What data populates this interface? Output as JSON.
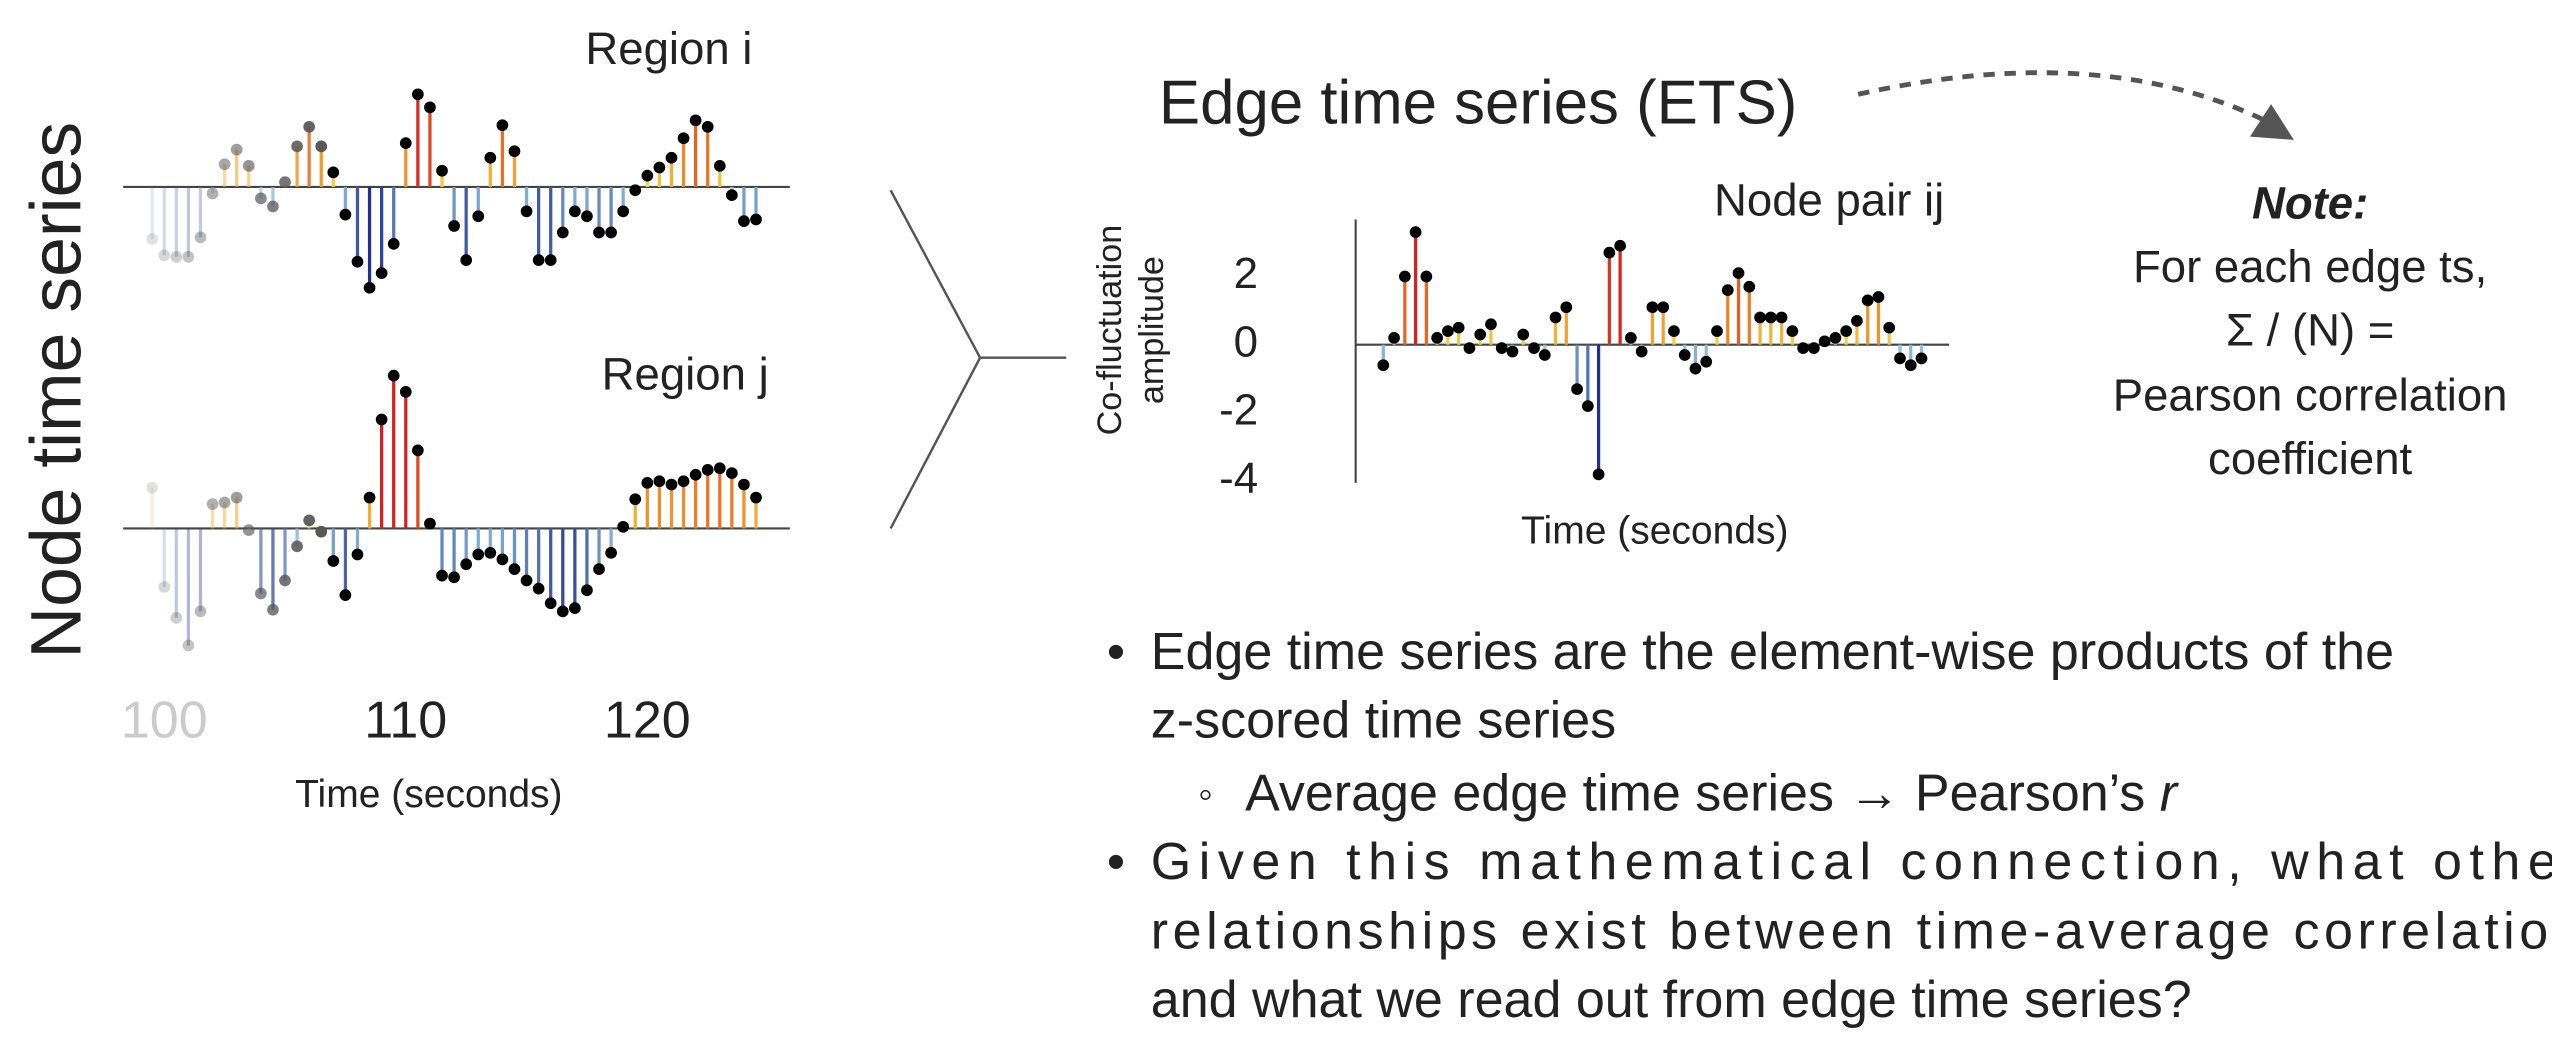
{
  "node_panel": {
    "ylabel": "Node time series"
  },
  "chart_data": [
    {
      "type": "stem",
      "title": "Region i",
      "fade": true,
      "x": [
        99.5,
        100,
        100.5,
        101,
        101.5,
        102,
        102.5,
        103,
        103.5,
        104,
        104.5,
        105,
        105.5,
        106,
        106.5,
        107,
        107.5,
        108,
        108.5,
        109,
        109.5,
        110,
        110.5,
        111,
        111.5,
        112,
        112.5,
        113,
        113.5,
        114,
        114.5,
        115,
        115.5,
        116,
        116.5,
        117,
        117.5,
        118,
        118.5,
        119,
        119.5,
        120,
        120.5,
        121,
        121.5,
        122,
        122.5,
        123,
        123.5,
        124,
        124.5
      ],
      "values": [
        -1.6,
        -2.1,
        -2.15,
        -2.15,
        -1.55,
        -0.2,
        0.7,
        1.15,
        0.65,
        -0.35,
        -0.6,
        0.15,
        1.25,
        1.85,
        1.25,
        0.45,
        -0.85,
        -2.3,
        -3.1,
        -2.65,
        -1.75,
        1.35,
        2.85,
        2.45,
        0.5,
        -1.2,
        -2.25,
        -0.9,
        0.9,
        1.9,
        1.1,
        -0.75,
        -2.25,
        -2.25,
        -1.4,
        -0.75,
        -0.9,
        -1.4,
        -1.4,
        -0.75,
        -0.1,
        0.35,
        0.6,
        0.9,
        1.5,
        2.05,
        1.85,
        0.65,
        -0.25,
        -1.05,
        -1.0
      ],
      "xlim": [
        98.3,
        125.9
      ],
      "ylim": [
        -3.5,
        3.5
      ]
    },
    {
      "type": "stem",
      "title": "Region j",
      "fade": true,
      "xlabel": "Time (seconds)",
      "x": [
        99.5,
        100,
        100.5,
        101,
        101.5,
        102,
        102.5,
        103,
        103.5,
        104,
        104.5,
        105,
        105.5,
        106,
        106.5,
        107,
        107.5,
        108,
        108.5,
        109,
        109.5,
        110,
        110.5,
        111,
        111.5,
        112,
        112.5,
        113,
        113.5,
        114,
        114.5,
        115,
        115.5,
        116,
        116.5,
        117,
        117.5,
        118,
        118.5,
        119,
        119.5,
        120,
        120.5,
        121,
        121.5,
        122,
        122.5,
        123,
        123.5,
        124,
        124.5
      ],
      "values": [
        1.25,
        -1.8,
        -2.75,
        -3.6,
        -2.55,
        0.75,
        0.8,
        0.95,
        -0.05,
        -2.0,
        -2.5,
        -1.6,
        -0.55,
        0.25,
        -0.1,
        -1.0,
        -2.05,
        -0.8,
        0.95,
        3.35,
        4.7,
        4.2,
        2.4,
        0.15,
        -1.45,
        -1.5,
        -1.1,
        -0.8,
        -0.75,
        -0.95,
        -1.25,
        -1.6,
        -1.85,
        -2.3,
        -2.55,
        -2.45,
        -1.9,
        -1.25,
        -0.75,
        0.05,
        0.9,
        1.4,
        1.45,
        1.35,
        1.45,
        1.65,
        1.8,
        1.85,
        1.7,
        1.35,
        0.95
      ],
      "xlim": [
        98.3,
        125.9
      ],
      "ylim": [
        -3.5,
        3.5
      ],
      "xticks": [
        100,
        110,
        120
      ]
    },
    {
      "type": "stem",
      "title": "Node pair ij",
      "xlabel": "Time (seconds)",
      "ylabel": [
        "Co-fluctuation",
        "amplitude"
      ],
      "values": [
        -0.6,
        0.2,
        2.0,
        3.3,
        2.0,
        0.2,
        0.4,
        0.5,
        -0.1,
        0.3,
        0.6,
        -0.1,
        -0.2,
        0.3,
        -0.1,
        -0.3,
        0.8,
        1.1,
        -1.3,
        -1.8,
        -3.8,
        2.7,
        2.9,
        0.2,
        -0.2,
        1.1,
        1.1,
        0.4,
        -0.3,
        -0.7,
        -0.5,
        0.4,
        1.6,
        2.1,
        1.7,
        0.8,
        0.8,
        0.8,
        0.4,
        -0.1,
        -0.1,
        0.1,
        0.2,
        0.4,
        0.7,
        1.3,
        1.4,
        0.5,
        -0.4,
        -0.6,
        -0.4
      ],
      "ylim": [
        -4.05,
        3.67
      ],
      "yticks": [
        2,
        0,
        -2,
        -4
      ]
    }
  ],
  "colormap": [
    {
      "value": -3,
      "color": "#22308f"
    },
    {
      "value": -0.01,
      "color": "#9fd8ea"
    },
    {
      "value": 0,
      "color": "#f7e54b"
    },
    {
      "value": 1.5,
      "color": "#f08a24"
    },
    {
      "value": 3,
      "color": "#d61f1f"
    }
  ],
  "ets_title": "Edge time series (ETS)",
  "note": {
    "heading": "Note:",
    "lines": [
      "For each edge ts,",
      "Σ / (N) =",
      "Pearson correlation",
      "coefficient"
    ]
  },
  "bullets": [
    {
      "lines": [
        "Edge time series are the element-wise products of the",
        "z-scored time series"
      ],
      "sub": {
        "text": "Average edge time series → Pearson’s ",
        "italic": "r"
      }
    },
    {
      "lines": [
        "Given this mathematical connection, what other",
        "relationships exist between time-average correlation",
        "and what we read out from edge time series?"
      ]
    }
  ]
}
